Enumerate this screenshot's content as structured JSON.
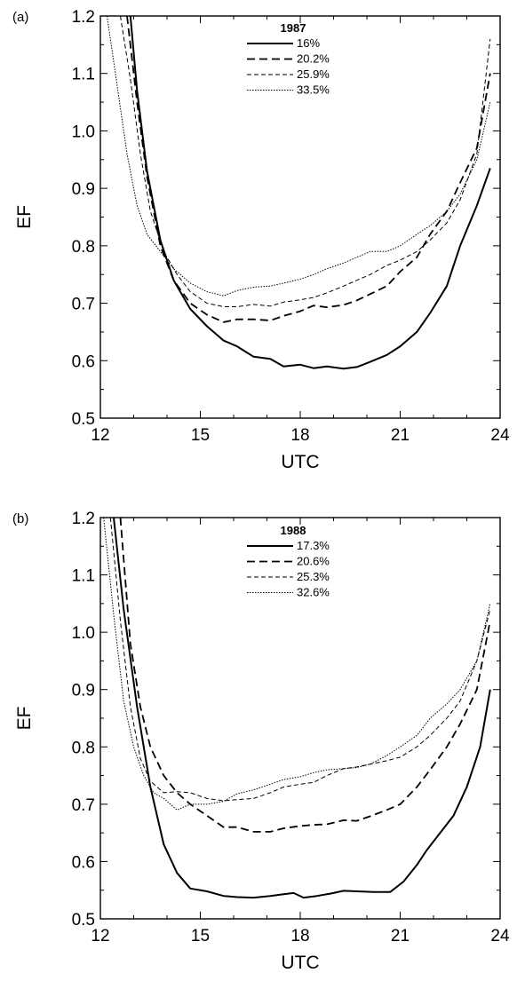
{
  "chart_data": [
    {
      "type": "line",
      "panel_label": "(a)",
      "legend_title": "1987",
      "xlabel": "UTC",
      "ylabel": "EF",
      "xlim": [
        12,
        24
      ],
      "ylim": [
        0.5,
        1.2
      ],
      "xticks": [
        12,
        15,
        18,
        21,
        24
      ],
      "yticks": [
        0.5,
        0.6,
        0.7,
        0.8,
        0.9,
        1.0,
        1.1,
        1.2
      ],
      "xtick_labels": [
        "12",
        "15",
        "18",
        "21",
        "24"
      ],
      "ytick_labels": [
        "0.5",
        "0.6",
        "0.7",
        "0.8",
        "0.9",
        "1.0",
        "1.1",
        "1.2"
      ],
      "legend_position": "top-center",
      "series": [
        {
          "name": "16%",
          "style": "solid",
          "x": [
            12.9,
            13.1,
            13.4,
            13.8,
            14.2,
            14.7,
            15.2,
            15.7,
            16.1,
            16.6,
            17.1,
            17.5,
            18.0,
            18.4,
            18.8,
            19.3,
            19.7,
            20.1,
            20.6,
            21.0,
            21.5,
            21.9,
            22.4,
            22.8,
            23.3,
            23.7
          ],
          "y": [
            1.2,
            1.07,
            0.93,
            0.81,
            0.74,
            0.69,
            0.66,
            0.635,
            0.625,
            0.607,
            0.603,
            0.59,
            0.593,
            0.587,
            0.59,
            0.586,
            0.589,
            0.598,
            0.61,
            0.625,
            0.65,
            0.683,
            0.73,
            0.8,
            0.87,
            0.935
          ]
        },
        {
          "name": "20.2%",
          "style": "long-dash",
          "x": [
            12.8,
            13.1,
            13.4,
            13.8,
            14.2,
            14.7,
            15.2,
            15.7,
            16.1,
            16.6,
            17.1,
            17.5,
            18.0,
            18.4,
            18.8,
            19.3,
            19.7,
            20.1,
            20.6,
            21.0,
            21.5,
            21.9,
            22.4,
            22.8,
            23.3,
            23.7
          ],
          "y": [
            1.2,
            1.05,
            0.92,
            0.8,
            0.74,
            0.7,
            0.68,
            0.667,
            0.672,
            0.672,
            0.67,
            0.678,
            0.686,
            0.696,
            0.693,
            0.697,
            0.705,
            0.716,
            0.73,
            0.755,
            0.78,
            0.82,
            0.86,
            0.91,
            0.97,
            1.1
          ]
        },
        {
          "name": "25.9%",
          "style": "short-dash",
          "x": [
            12.6,
            12.9,
            13.2,
            13.5,
            13.9,
            14.3,
            14.7,
            15.2,
            15.7,
            16.1,
            16.6,
            17.1,
            17.5,
            18.0,
            18.4,
            18.8,
            19.3,
            19.7,
            20.1,
            20.6,
            21.0,
            21.5,
            21.9,
            22.4,
            22.8,
            23.3,
            23.7
          ],
          "y": [
            1.2,
            1.09,
            0.96,
            0.86,
            0.79,
            0.75,
            0.72,
            0.7,
            0.694,
            0.694,
            0.698,
            0.695,
            0.702,
            0.706,
            0.71,
            0.718,
            0.73,
            0.74,
            0.75,
            0.766,
            0.775,
            0.79,
            0.81,
            0.84,
            0.88,
            0.96,
            1.16
          ]
        },
        {
          "name": "33.5%",
          "style": "dotted",
          "x": [
            12.2,
            12.5,
            12.8,
            13.1,
            13.4,
            13.8,
            14.2,
            14.7,
            15.2,
            15.7,
            16.1,
            16.6,
            17.1,
            17.5,
            18.0,
            18.4,
            18.8,
            19.3,
            19.7,
            20.1,
            20.6,
            21.0,
            21.5,
            21.9,
            22.4,
            22.8,
            23.3,
            23.7
          ],
          "y": [
            1.2,
            1.08,
            0.96,
            0.87,
            0.82,
            0.79,
            0.76,
            0.735,
            0.72,
            0.713,
            0.722,
            0.728,
            0.73,
            0.735,
            0.742,
            0.75,
            0.76,
            0.77,
            0.78,
            0.79,
            0.79,
            0.8,
            0.82,
            0.835,
            0.86,
            0.89,
            0.95,
            1.05
          ]
        }
      ]
    },
    {
      "type": "line",
      "panel_label": "(b)",
      "legend_title": "1988",
      "xlabel": "UTC",
      "ylabel": "EF",
      "xlim": [
        12,
        24
      ],
      "ylim": [
        0.5,
        1.2
      ],
      "xticks": [
        12,
        15,
        18,
        21,
        24
      ],
      "yticks": [
        0.5,
        0.6,
        0.7,
        0.8,
        0.9,
        1.0,
        1.1,
        1.2
      ],
      "xtick_labels": [
        "12",
        "15",
        "18",
        "21",
        "24"
      ],
      "ytick_labels": [
        "0.5",
        "0.6",
        "0.7",
        "0.8",
        "0.9",
        "1.0",
        "1.1",
        "1.2"
      ],
      "legend_position": "top-center",
      "series": [
        {
          "name": "17.3%",
          "style": "solid",
          "x": [
            12.4,
            12.7,
            13.1,
            13.5,
            13.9,
            14.3,
            14.7,
            15.2,
            15.7,
            16.1,
            16.6,
            17.1,
            17.5,
            17.8,
            18.1,
            18.5,
            18.9,
            19.3,
            19.7,
            20.2,
            20.7,
            21.1,
            21.5,
            21.8,
            22.2,
            22.6,
            23.0,
            23.4,
            23.7
          ],
          "y": [
            1.2,
            1.04,
            0.87,
            0.73,
            0.63,
            0.58,
            0.553,
            0.548,
            0.54,
            0.538,
            0.537,
            0.54,
            0.543,
            0.545,
            0.537,
            0.54,
            0.544,
            0.549,
            0.548,
            0.547,
            0.547,
            0.565,
            0.594,
            0.62,
            0.65,
            0.68,
            0.73,
            0.8,
            0.9
          ]
        },
        {
          "name": "20.6%",
          "style": "long-dash",
          "x": [
            12.6,
            12.9,
            13.2,
            13.5,
            13.9,
            14.3,
            14.7,
            15.2,
            15.7,
            16.1,
            16.6,
            17.1,
            17.5,
            18.0,
            18.4,
            18.8,
            19.3,
            19.7,
            20.1,
            20.6,
            21.0,
            21.5,
            21.9,
            22.4,
            22.8,
            23.3,
            23.7
          ],
          "y": [
            1.2,
            0.98,
            0.87,
            0.8,
            0.75,
            0.72,
            0.7,
            0.68,
            0.66,
            0.66,
            0.652,
            0.652,
            0.658,
            0.662,
            0.664,
            0.665,
            0.672,
            0.671,
            0.679,
            0.69,
            0.7,
            0.73,
            0.76,
            0.8,
            0.84,
            0.9,
            1.02
          ]
        },
        {
          "name": "25.3%",
          "style": "short-dash",
          "x": [
            12.3,
            12.6,
            12.9,
            13.2,
            13.5,
            13.9,
            14.3,
            14.7,
            15.2,
            15.7,
            16.1,
            16.6,
            17.1,
            17.5,
            18.0,
            18.4,
            18.8,
            19.3,
            19.7,
            20.1,
            20.6,
            21.0,
            21.5,
            21.9,
            22.4,
            22.8,
            23.3,
            23.7
          ],
          "y": [
            1.2,
            1.02,
            0.87,
            0.78,
            0.74,
            0.72,
            0.722,
            0.72,
            0.71,
            0.706,
            0.708,
            0.71,
            0.72,
            0.73,
            0.735,
            0.738,
            0.75,
            0.762,
            0.765,
            0.77,
            0.776,
            0.782,
            0.8,
            0.82,
            0.85,
            0.88,
            0.95,
            1.04
          ]
        },
        {
          "name": "32.6%",
          "style": "dotted",
          "x": [
            12.1,
            12.4,
            12.7,
            13.0,
            13.3,
            13.6,
            13.9,
            14.3,
            14.7,
            15.2,
            15.7,
            16.1,
            16.6,
            17.1,
            17.5,
            18.0,
            18.4,
            18.8,
            19.3,
            19.7,
            20.1,
            20.6,
            21.0,
            21.5,
            21.9,
            22.4,
            22.8,
            23.3,
            23.7
          ],
          "y": [
            1.2,
            1.03,
            0.88,
            0.8,
            0.75,
            0.72,
            0.71,
            0.69,
            0.7,
            0.7,
            0.705,
            0.718,
            0.725,
            0.735,
            0.743,
            0.748,
            0.755,
            0.76,
            0.762,
            0.764,
            0.77,
            0.785,
            0.8,
            0.82,
            0.85,
            0.875,
            0.9,
            0.95,
            1.05
          ]
        }
      ]
    }
  ]
}
